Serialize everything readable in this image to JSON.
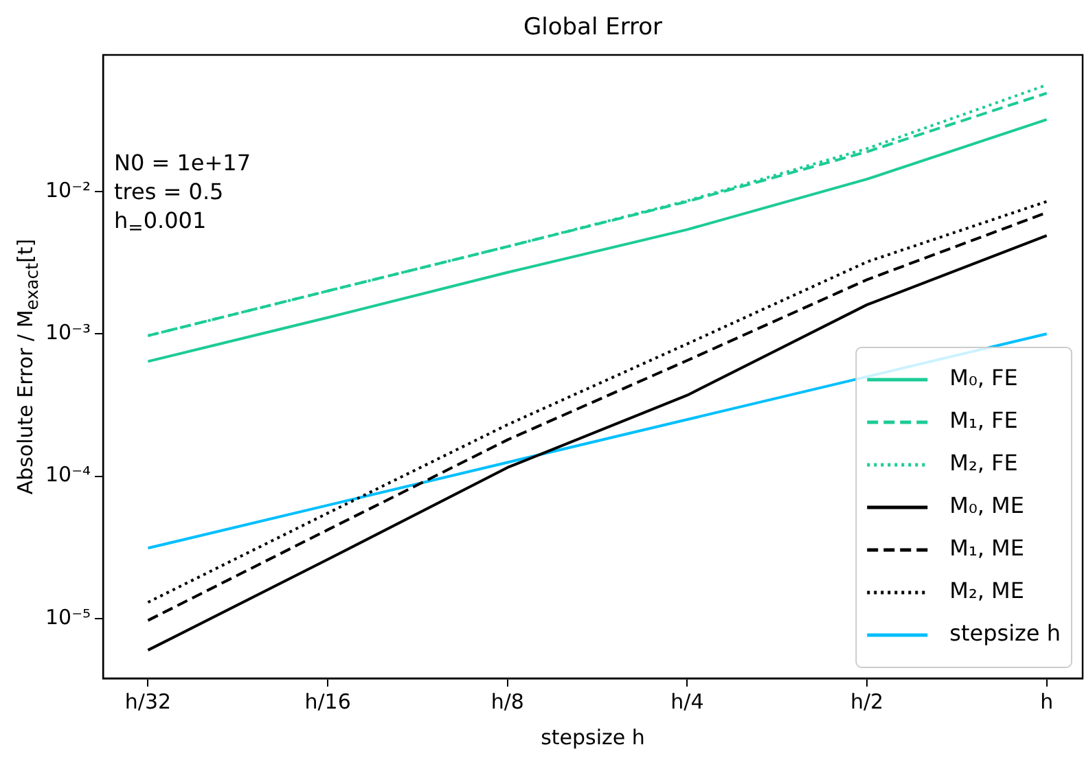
{
  "chart_data": {
    "type": "line",
    "title": "Global Error",
    "xlabel": "stepsize h",
    "ylabel": "Absolute Error / M$_{exact}$[t]",
    "categories": [
      "h/32",
      "h/16",
      "h/8",
      "h/4",
      "h/2",
      "h"
    ],
    "series": [
      {
        "name": "M₀, FE",
        "color": "#1ccb96",
        "line_style": "solid",
        "values": [
          0.00064,
          0.0013,
          0.0027,
          0.0054,
          0.0122,
          0.032
        ]
      },
      {
        "name": "M₁, FE",
        "color": "#1ccb96",
        "line_style": "dashed",
        "values": [
          0.00097,
          0.002,
          0.0041,
          0.0085,
          0.019,
          0.049
        ]
      },
      {
        "name": "M₂, FE",
        "color": "#1ccb96",
        "line_style": "dotted",
        "values": [
          0.00097,
          0.002,
          0.0041,
          0.0086,
          0.02,
          0.056
        ]
      },
      {
        "name": "M₀, ME",
        "color": "#000000",
        "line_style": "solid",
        "values": [
          6e-06,
          2.6e-05,
          0.000115,
          0.00037,
          0.0016,
          0.0049
        ]
      },
      {
        "name": "M₁, ME",
        "color": "#000000",
        "line_style": "dashed",
        "values": [
          9.7e-06,
          4.2e-05,
          0.00018,
          0.00065,
          0.0024,
          0.0071
        ]
      },
      {
        "name": "M₂, ME",
        "color": "#000000",
        "line_style": "dotted",
        "values": [
          1.3e-05,
          5.5e-05,
          0.00023,
          0.00085,
          0.0032,
          0.0085
        ]
      },
      {
        "name": "stepsize h",
        "color": "#00bfff",
        "line_style": "solid",
        "values": [
          3.125e-05,
          6.25e-05,
          0.000125,
          0.00025,
          0.0005,
          0.001
        ]
      }
    ],
    "log": "y",
    "ylim": [
      3.8e-06,
      0.091
    ],
    "yticks": [
      {
        "value": 1e-05,
        "label": "10⁻⁵"
      },
      {
        "value": 0.0001,
        "label": "10⁻⁴"
      },
      {
        "value": 0.001,
        "label": "10⁻³"
      },
      {
        "value": 0.01,
        "label": "10⁻²"
      }
    ],
    "annotations": [
      "N0 = 1e+17",
      "tres = 0.5",
      "h$_{=}$0.001"
    ],
    "legend": "bottom right",
    "grid": false,
    "marker": "none"
  }
}
